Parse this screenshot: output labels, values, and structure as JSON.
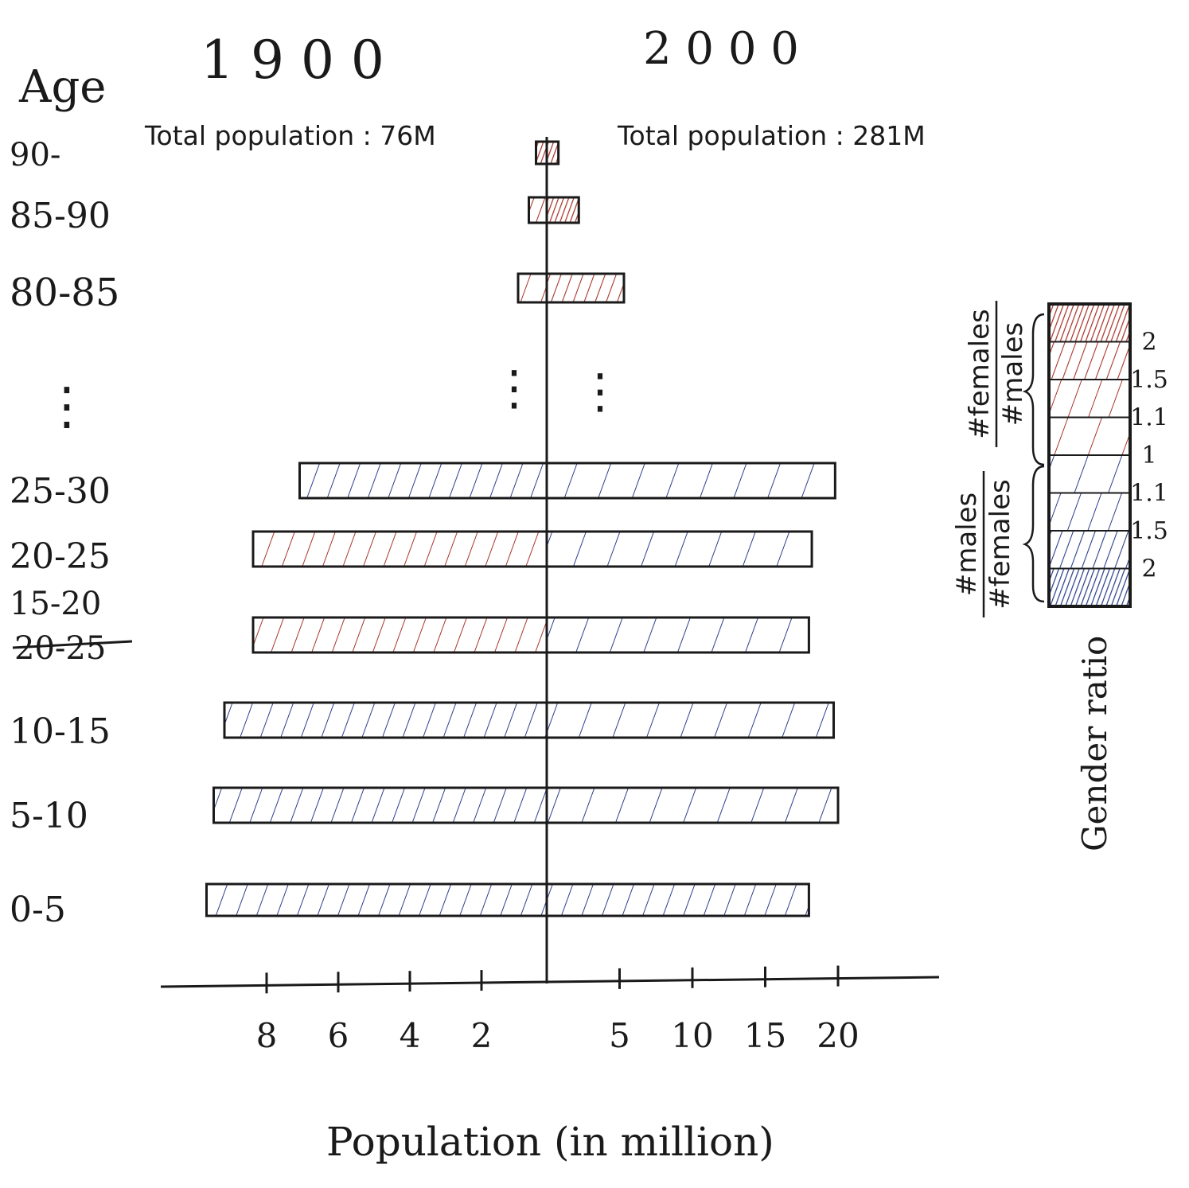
{
  "chart_data": {
    "type": "bar",
    "subtype": "population-pyramid",
    "age_axis_title": "Age",
    "x_axis_title": "Population (in million)",
    "panels": [
      {
        "name": "1900",
        "year_label": "1 9 0 0",
        "total_label": "Total population : 76M",
        "direction": "left",
        "ticks": [
          8,
          6,
          4,
          2
        ],
        "tick_labels": [
          "8",
          "6",
          "4",
          "2"
        ],
        "xlim": [
          0,
          9
        ]
      },
      {
        "name": "2000",
        "year_label": "2 0 0 0",
        "total_label": "Total population : 281M",
        "direction": "right",
        "ticks": [
          5,
          10,
          15,
          20
        ],
        "tick_labels": [
          "5",
          "10",
          "15",
          "20"
        ],
        "xlim": [
          0,
          24
        ]
      }
    ],
    "age_groups": [
      {
        "label": "90-",
        "y1900": 0.3,
        "ratio1900": 2.0,
        "sex1900": "female",
        "y2000": 0.8,
        "ratio2000": 2.0,
        "sex2000": "female"
      },
      {
        "label": "85-90",
        "y1900": 0.5,
        "ratio1900": 1.5,
        "sex1900": "female",
        "y2000": 2.2,
        "ratio2000": 2.0,
        "sex2000": "female"
      },
      {
        "label": "80-85",
        "y1900": 0.8,
        "ratio1900": 1.1,
        "sex1900": "female",
        "y2000": 5.3,
        "ratio2000": 1.5,
        "sex2000": "female"
      },
      {
        "label": "25-30",
        "y1900": 6.9,
        "ratio1900": 1.1,
        "sex1900": "male",
        "y2000": 19.8,
        "ratio2000": 1.0,
        "sex2000": "male"
      },
      {
        "label": "20-25",
        "y1900": 8.2,
        "ratio1900": 1.1,
        "sex1900": "female",
        "y2000": 18.2,
        "ratio2000": 1.0,
        "sex2000": "male"
      },
      {
        "label": "15-20",
        "label_strikethrough": "20-25",
        "y1900": 8.2,
        "ratio1900": 1.1,
        "sex1900": "female",
        "y2000": 18.0,
        "ratio2000": 1.0,
        "sex2000": "male"
      },
      {
        "label": "10-15",
        "y1900": 9.0,
        "ratio1900": 1.1,
        "sex1900": "male",
        "y2000": 19.7,
        "ratio2000": 1.0,
        "sex2000": "male"
      },
      {
        "label": "5-10",
        "y1900": 9.3,
        "ratio1900": 1.1,
        "sex1900": "male",
        "y2000": 20.0,
        "ratio2000": 1.0,
        "sex2000": "male"
      },
      {
        "label": "0-5",
        "y1900": 9.5,
        "ratio1900": 1.1,
        "sex1900": "male",
        "y2000": 18.0,
        "ratio2000": 1.1,
        "sex2000": "male"
      }
    ],
    "ellipsis": "⋮",
    "legend": {
      "title": "Gender ratio",
      "female_label": "#females / #males",
      "female_numerator": "#females",
      "female_denominator": "#males",
      "male_label": "#males / #females",
      "male_numerator": "#males",
      "male_denominator": "#females",
      "placement": "right",
      "ticks": [
        "2",
        "1.5",
        "1.1",
        "1",
        "1.1",
        "1.5",
        "2"
      ]
    },
    "colors": {
      "female": "#a8352b",
      "male": "#2c3f8c",
      "ink": "#1a1a1a",
      "background": "#ffffff"
    }
  }
}
